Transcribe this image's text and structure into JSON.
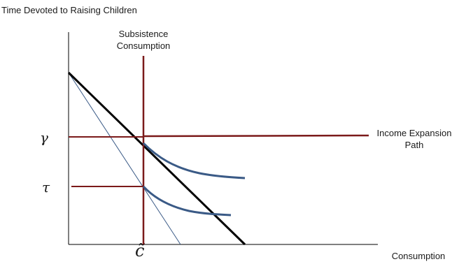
{
  "labels": {
    "y_axis_title": "Time Devoted to Raising Children",
    "x_axis_title": "Consumption",
    "subsistence": "Subsistence Consumption",
    "income_expansion": "Income Expansion Path",
    "gamma": "γ",
    "tau": "τ",
    "c_tilde": "c̃"
  },
  "colors": {
    "axis": "#000000",
    "budget_line": "#000000",
    "subsistence_line": "#7b1a1a",
    "expansion_path": "#7b1a1a",
    "indifference_curve": "#3a5a86",
    "thin_budget_line": "#3a5a86"
  }
}
